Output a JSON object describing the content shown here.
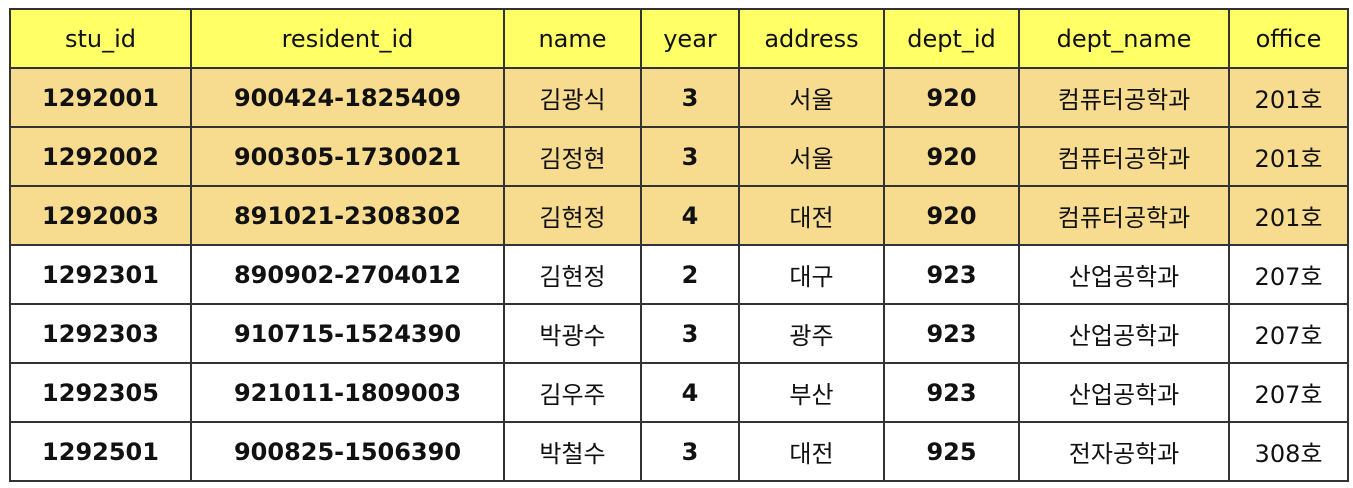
{
  "colors": {
    "header_bg": "#ffff66",
    "highlight_row_bg": "#f7dc8f",
    "plain_row_bg": "#ffffff",
    "border": "#333333"
  },
  "table": {
    "columns": [
      "stu_id",
      "resident_id",
      "name",
      "year",
      "address",
      "dept_id",
      "dept_name",
      "office"
    ],
    "rows": [
      {
        "highlight": true,
        "cells": [
          "1292001",
          "900424-1825409",
          "김광식",
          "3",
          "서울",
          "920",
          "컴퓨터공학과",
          "201호"
        ]
      },
      {
        "highlight": true,
        "cells": [
          "1292002",
          "900305-1730021",
          "김정현",
          "3",
          "서울",
          "920",
          "컴퓨터공학과",
          "201호"
        ]
      },
      {
        "highlight": true,
        "cells": [
          "1292003",
          "891021-2308302",
          "김현정",
          "4",
          "대전",
          "920",
          "컴퓨터공학과",
          "201호"
        ]
      },
      {
        "highlight": false,
        "cells": [
          "1292301",
          "890902-2704012",
          "김현정",
          "2",
          "대구",
          "923",
          "산업공학과",
          "207호"
        ]
      },
      {
        "highlight": false,
        "cells": [
          "1292303",
          "910715-1524390",
          "박광수",
          "3",
          "광주",
          "923",
          "산업공학과",
          "207호"
        ]
      },
      {
        "highlight": false,
        "cells": [
          "1292305",
          "921011-1809003",
          "김우주",
          "4",
          "부산",
          "923",
          "산업공학과",
          "207호"
        ]
      },
      {
        "highlight": false,
        "cells": [
          "1292501",
          "900825-1506390",
          "박철수",
          "3",
          "대전",
          "925",
          "전자공학과",
          "308호"
        ]
      }
    ]
  }
}
